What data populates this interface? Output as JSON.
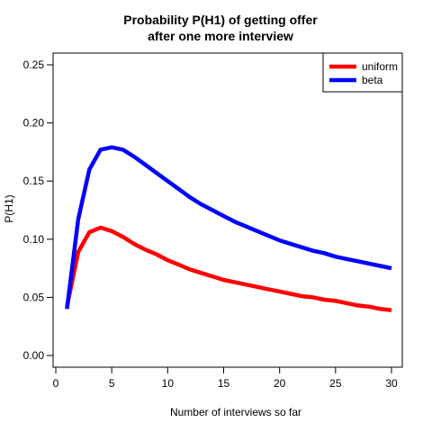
{
  "chart_data": {
    "type": "line",
    "title_lines": [
      "Probability P(H1) of getting offer",
      "after one more interview"
    ],
    "xlabel": "Number of interviews so far",
    "ylabel": "P(H1)",
    "xlim": [
      0,
      30
    ],
    "ylim": [
      0,
      0.25
    ],
    "x_ticks": [
      0,
      5,
      10,
      15,
      20,
      25,
      30
    ],
    "y_ticks": [
      0.0,
      0.05,
      0.1,
      0.15,
      0.2,
      0.25
    ],
    "y_tick_labels": [
      "0.00",
      "0.05",
      "0.10",
      "0.15",
      "0.20",
      "0.25"
    ],
    "grid": false,
    "legend_position": "top-right",
    "x": [
      1,
      2,
      3,
      4,
      5,
      6,
      7,
      8,
      9,
      10,
      11,
      12,
      13,
      14,
      15,
      16,
      17,
      18,
      19,
      20,
      21,
      22,
      23,
      24,
      25,
      26,
      27,
      28,
      29,
      30
    ],
    "series": [
      {
        "name": "uniform",
        "color": "#ff0000",
        "values": [
          0.042,
          0.089,
          0.106,
          0.11,
          0.107,
          0.102,
          0.096,
          0.091,
          0.087,
          0.082,
          0.078,
          0.074,
          0.071,
          0.068,
          0.065,
          0.063,
          0.061,
          0.059,
          0.057,
          0.055,
          0.053,
          0.051,
          0.05,
          0.048,
          0.047,
          0.045,
          0.043,
          0.042,
          0.04,
          0.039
        ]
      },
      {
        "name": "beta",
        "color": "#0000ff",
        "values": [
          0.04,
          0.117,
          0.16,
          0.177,
          0.179,
          0.177,
          0.171,
          0.164,
          0.157,
          0.15,
          0.143,
          0.136,
          0.13,
          0.125,
          0.12,
          0.115,
          0.111,
          0.107,
          0.103,
          0.099,
          0.096,
          0.093,
          0.09,
          0.088,
          0.085,
          0.083,
          0.081,
          0.079,
          0.077,
          0.075
        ]
      }
    ]
  }
}
